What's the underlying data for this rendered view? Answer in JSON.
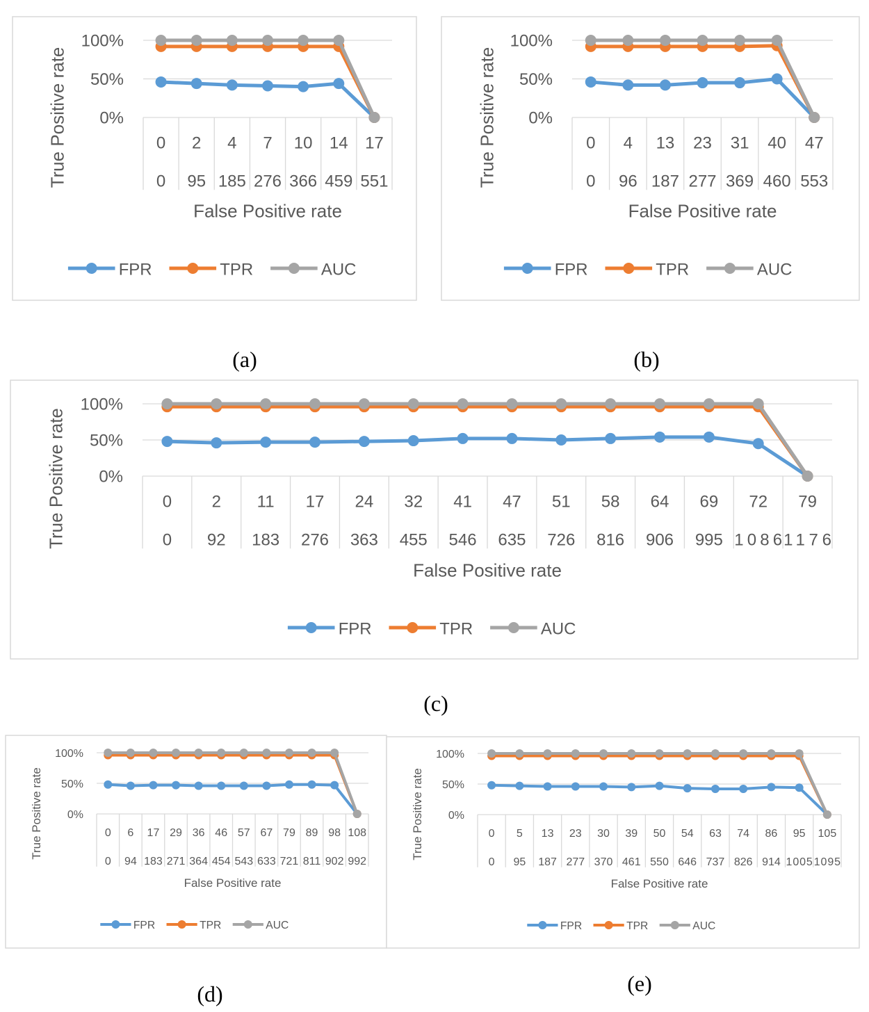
{
  "chart_data": [
    {
      "type": "line",
      "caption": "(a)",
      "ylabel": "True Positive rate",
      "xlabel": "False Positive rate",
      "yticks": [
        "0%",
        "50%",
        "100%"
      ],
      "ylim": [
        0,
        100
      ],
      "x_row1": [
        "0",
        "2",
        "4",
        "7",
        "10",
        "14",
        "17"
      ],
      "x_row2": [
        "0",
        "95",
        "185",
        "276",
        "366",
        "459",
        "551"
      ],
      "series": [
        {
          "name": "FPR",
          "color": "#5B9BD5",
          "values": [
            46,
            44,
            42,
            41,
            40,
            44,
            0
          ]
        },
        {
          "name": "TPR",
          "color": "#ED7D31",
          "values": [
            92,
            92,
            92,
            92,
            92,
            92,
            0
          ]
        },
        {
          "name": "AUC",
          "color": "#A5A5A5",
          "values": [
            100,
            100,
            100,
            100,
            100,
            100,
            0
          ]
        }
      ],
      "legend": "bottom",
      "grid": true
    },
    {
      "type": "line",
      "caption": "(b)",
      "ylabel": "True Positive rate",
      "xlabel": "False Positive rate",
      "yticks": [
        "0%",
        "50%",
        "100%"
      ],
      "ylim": [
        0,
        100
      ],
      "x_row1": [
        "0",
        "4",
        "13",
        "23",
        "31",
        "40",
        "47"
      ],
      "x_row2": [
        "0",
        "96",
        "187",
        "277",
        "369",
        "460",
        "553"
      ],
      "series": [
        {
          "name": "FPR",
          "color": "#5B9BD5",
          "values": [
            46,
            42,
            42,
            45,
            45,
            50,
            0
          ]
        },
        {
          "name": "TPR",
          "color": "#ED7D31",
          "values": [
            92,
            92,
            92,
            92,
            92,
            93,
            0
          ]
        },
        {
          "name": "AUC",
          "color": "#A5A5A5",
          "values": [
            100,
            100,
            100,
            100,
            100,
            100,
            0
          ]
        }
      ],
      "legend": "bottom",
      "grid": true
    },
    {
      "type": "line",
      "caption": "(c)",
      "ylabel": "True Positive rate",
      "xlabel": "False Positive rate",
      "yticks": [
        "0%",
        "50%",
        "100%"
      ],
      "ylim": [
        0,
        100
      ],
      "x_row1": [
        "0",
        "2",
        "11",
        "17",
        "24",
        "32",
        "41",
        "47",
        "51",
        "58",
        "64",
        "69",
        "72",
        "79"
      ],
      "x_row2": [
        "0",
        "92",
        "183",
        "276",
        "363",
        "455",
        "546",
        "635",
        "726",
        "816",
        "906",
        "995",
        "1086",
        "1176"
      ],
      "series": [
        {
          "name": "FPR",
          "color": "#5B9BD5",
          "values": [
            48,
            46,
            47,
            47,
            48,
            49,
            52,
            52,
            50,
            52,
            54,
            54,
            45,
            0
          ]
        },
        {
          "name": "TPR",
          "color": "#ED7D31",
          "values": [
            96,
            96,
            96,
            96,
            96,
            96,
            96,
            96,
            96,
            96,
            96,
            96,
            96,
            0
          ]
        },
        {
          "name": "AUC",
          "color": "#A5A5A5",
          "values": [
            100,
            100,
            100,
            100,
            100,
            100,
            100,
            100,
            100,
            100,
            100,
            100,
            100,
            0
          ]
        }
      ],
      "legend": "bottom",
      "grid": true
    },
    {
      "type": "line",
      "caption": "(d)",
      "ylabel": "True Positive rate",
      "xlabel": "False Positive rate",
      "yticks": [
        "0%",
        "50%",
        "100%"
      ],
      "ylim": [
        0,
        100
      ],
      "x_row1": [
        "0",
        "6",
        "17",
        "29",
        "36",
        "46",
        "57",
        "67",
        "79",
        "89",
        "98",
        "108"
      ],
      "x_row2": [
        "0",
        "94",
        "183",
        "271",
        "364",
        "454",
        "543",
        "633",
        "721",
        "811",
        "902",
        "992"
      ],
      "series": [
        {
          "name": "FPR",
          "color": "#5B9BD5",
          "values": [
            48,
            46,
            47,
            47,
            46,
            46,
            46,
            46,
            48,
            48,
            47,
            0
          ]
        },
        {
          "name": "TPR",
          "color": "#ED7D31",
          "values": [
            96,
            96,
            96,
            96,
            96,
            96,
            96,
            96,
            96,
            96,
            96,
            0
          ]
        },
        {
          "name": "AUC",
          "color": "#A5A5A5",
          "values": [
            100,
            100,
            100,
            100,
            100,
            100,
            100,
            100,
            100,
            100,
            100,
            0
          ]
        }
      ],
      "legend": "bottom",
      "grid": true
    },
    {
      "type": "line",
      "caption": "(e)",
      "ylabel": "True Positive rate",
      "xlabel": "False Positive rate",
      "yticks": [
        "0%",
        "50%",
        "100%"
      ],
      "ylim": [
        0,
        100
      ],
      "x_row1": [
        "0",
        "5",
        "13",
        "23",
        "30",
        "39",
        "50",
        "54",
        "63",
        "74",
        "86",
        "95",
        "105"
      ],
      "x_row2": [
        "0",
        "95",
        "187",
        "277",
        "370",
        "461",
        "550",
        "646",
        "737",
        "826",
        "914",
        "1005",
        "1095"
      ],
      "series": [
        {
          "name": "FPR",
          "color": "#5B9BD5",
          "values": [
            48,
            47,
            46,
            46,
            46,
            45,
            47,
            43,
            42,
            42,
            45,
            44,
            0
          ]
        },
        {
          "name": "TPR",
          "color": "#ED7D31",
          "values": [
            96,
            96,
            96,
            96,
            96,
            96,
            96,
            96,
            96,
            96,
            96,
            96,
            0
          ]
        },
        {
          "name": "AUC",
          "color": "#A5A5A5",
          "values": [
            100,
            100,
            100,
            100,
            100,
            100,
            100,
            100,
            100,
            100,
            100,
            100,
            0
          ]
        }
      ],
      "legend": "bottom",
      "grid": true
    }
  ]
}
